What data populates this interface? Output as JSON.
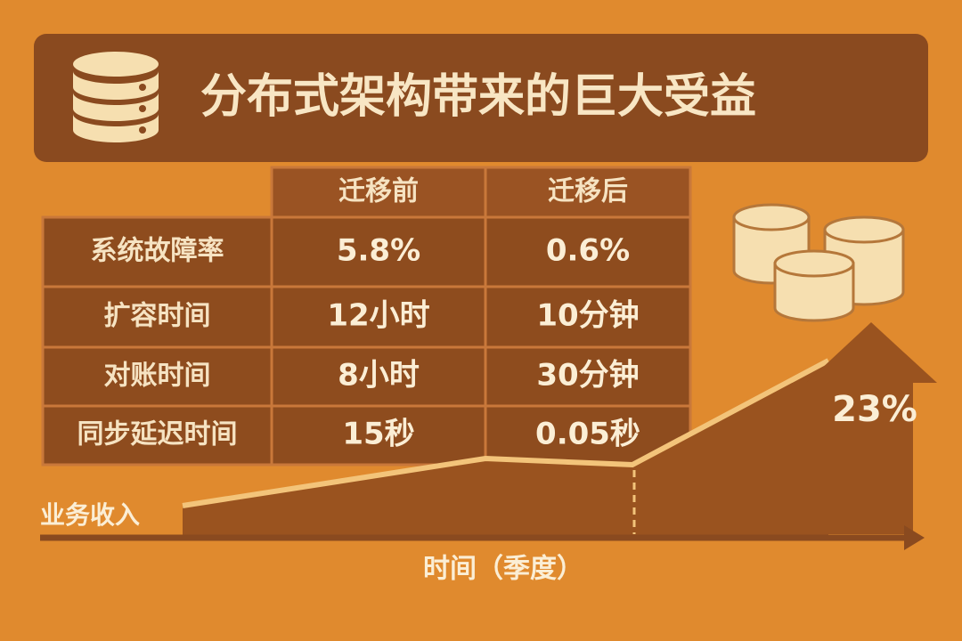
{
  "header": {
    "title": "分布式架构带来的巨大受益"
  },
  "table": {
    "columns": [
      "迁移前",
      "迁移后"
    ],
    "rows": [
      [
        "系统故障率",
        "5.8%",
        "0.6%"
      ],
      [
        "扩容时间",
        "12小时",
        "10分钟"
      ],
      [
        "对账时间",
        "8小时",
        "30分钟"
      ],
      [
        "同步延迟时间",
        "15秒",
        "0.05秒"
      ]
    ]
  },
  "chart": {
    "y_label": "业务收入",
    "x_label": "时间（季度）",
    "growth": "23%"
  }
}
